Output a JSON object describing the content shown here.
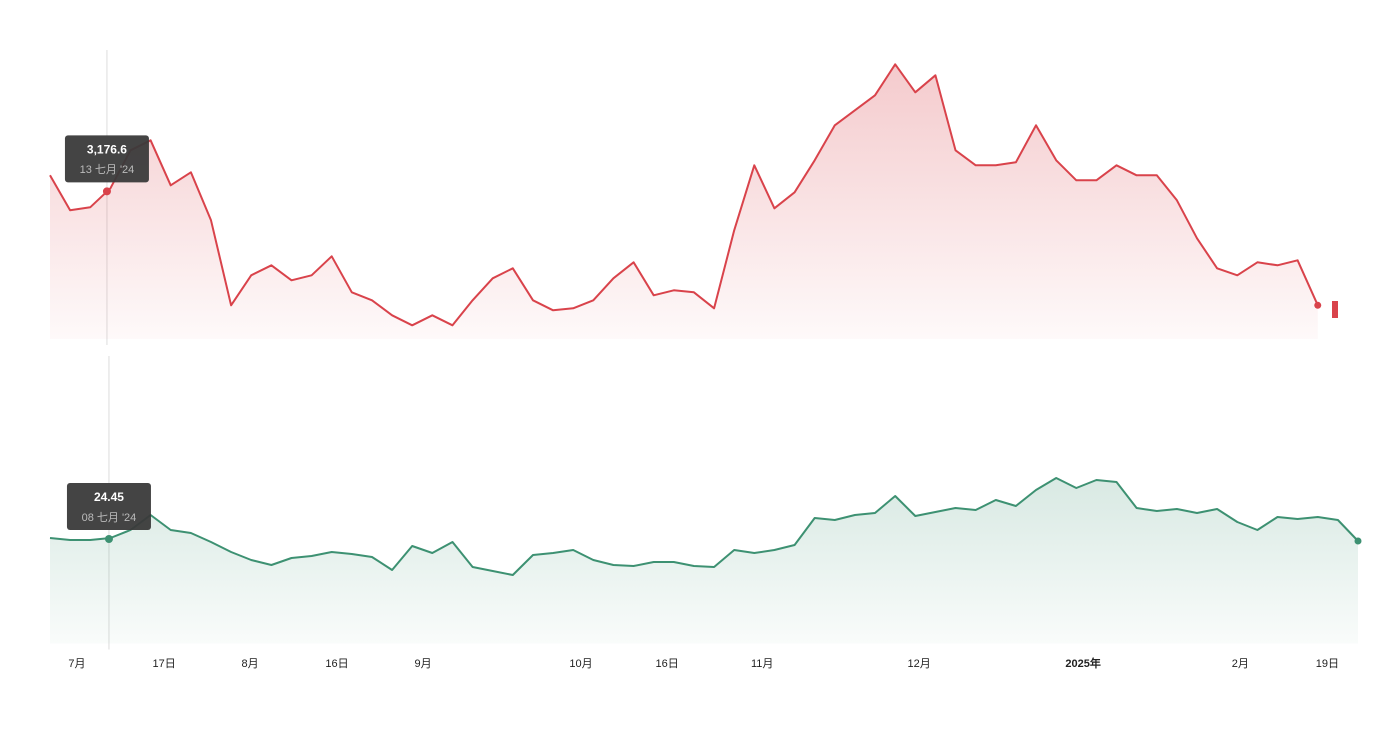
{
  "chart_data": [
    {
      "type": "area",
      "color": "#d9434b",
      "values": [
        3337,
        2987,
        3017,
        3207,
        3587,
        3687,
        3237,
        3367,
        2887,
        2037,
        2337,
        2437,
        2287,
        2337,
        2527,
        2167,
        2087,
        1937,
        1837,
        1937,
        1837,
        2087,
        2307,
        2407,
        2087,
        1987,
        2007,
        2087,
        2307,
        2467,
        2137,
        2187,
        2167,
        2007,
        2787,
        3437,
        3007,
        3167,
        3487,
        3837,
        3987,
        4137,
        4447,
        4167,
        4337,
        3587,
        3437,
        3437,
        3467,
        3837,
        3487,
        3287,
        3287,
        3437,
        3337,
        3337,
        3087,
        2707,
        2407,
        2337,
        2467,
        2437,
        2487,
        2037,
        null,
        null
      ],
      "xlim": [
        0,
        65
      ],
      "ylim": [
        1700,
        4500
      ],
      "tooltip": {
        "x": 2.83,
        "value": {
          "value": 3176.6,
          "label": "3,176.6"
        },
        "date": "13 七月 '24"
      }
    },
    {
      "type": "area",
      "color": "#3d9172",
      "values": [
        24.55,
        24.35,
        24.35,
        24.55,
        25.35,
        26.85,
        25.35,
        25.05,
        24.15,
        23.15,
        22.35,
        21.85,
        22.55,
        22.75,
        23.15,
        22.95,
        22.65,
        21.35,
        23.75,
        23.05,
        24.15,
        21.65,
        21.25,
        20.85,
        22.85,
        23.05,
        23.35,
        22.35,
        21.85,
        21.75,
        22.15,
        22.15,
        21.75,
        21.65,
        23.35,
        23.05,
        23.35,
        23.85,
        26.55,
        26.35,
        26.85,
        27.05,
        28.75,
        26.75,
        27.15,
        27.55,
        27.35,
        28.35,
        27.75,
        29.35,
        30.55,
        29.55,
        30.35,
        30.15,
        27.55,
        27.25,
        27.45,
        27.05,
        27.45,
        26.15,
        25.35,
        26.65,
        26.45,
        26.65,
        26.35,
        24.25
      ],
      "xlim": [
        0,
        65
      ],
      "ylim": [
        14,
        32
      ],
      "tooltip": {
        "x": 2.93,
        "value": 24.45,
        "date": "08 七月 '24"
      },
      "xticks": [
        {
          "value": 1.34,
          "label": "7月"
        },
        {
          "value": 5.67,
          "label": "17日"
        },
        {
          "value": 9.94,
          "label": "8月"
        },
        {
          "value": 14.26,
          "label": "16日"
        },
        {
          "value": 18.54,
          "label": "9月"
        },
        {
          "value": 26.39,
          "label": "10月"
        },
        {
          "value": 30.67,
          "label": "16日"
        },
        {
          "value": 35.39,
          "label": "11月"
        },
        {
          "value": 43.19,
          "label": "12月"
        },
        {
          "value": 51.34,
          "label": "2025年"
        },
        {
          "value": 59.15,
          "label": "2月"
        },
        {
          "value": 63.48,
          "label": "19日"
        }
      ]
    }
  ]
}
